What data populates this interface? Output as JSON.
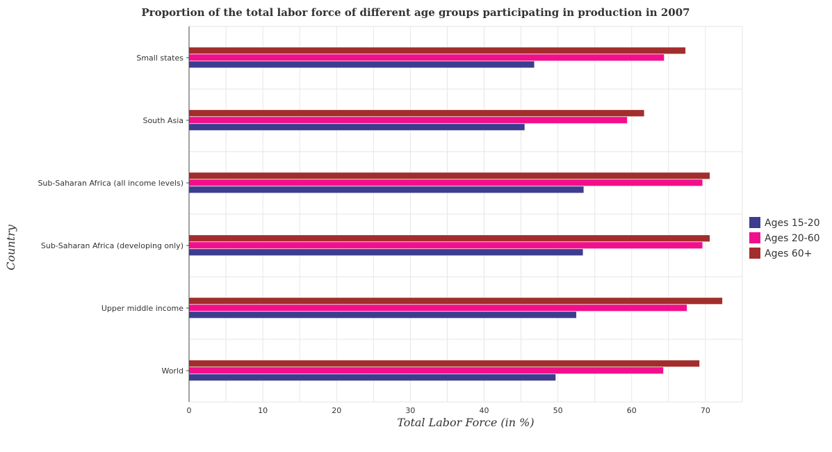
{
  "chart_data": {
    "type": "bar",
    "orientation": "horizontal",
    "title": "Proportion of the total labor force of different age groups participating in production in 2007",
    "xlabel": "Total Labor Force (in %)",
    "ylabel": "Country",
    "xlim": [
      0,
      75
    ],
    "xticks": [
      0,
      10,
      20,
      30,
      40,
      50,
      60,
      70
    ],
    "grid": true,
    "legend_position": "right",
    "categories": [
      "Small states",
      "South Asia",
      "Sub-Saharan Africa (all income levels)",
      "Sub-Saharan Africa (developing only)",
      "Upper middle income",
      "World"
    ],
    "series": [
      {
        "name": "Ages 15-20",
        "color": "#3d3d8f",
        "values": [
          46.8,
          45.5,
          53.5,
          53.4,
          52.5,
          49.7
        ]
      },
      {
        "name": "Ages 20-60",
        "color": "#f20f8c",
        "values": [
          64.4,
          59.4,
          69.6,
          69.6,
          67.5,
          64.3
        ]
      },
      {
        "name": "Ages 60+",
        "color": "#a32d2d",
        "values": [
          67.3,
          61.7,
          70.6,
          70.6,
          72.3,
          69.2
        ]
      }
    ]
  }
}
